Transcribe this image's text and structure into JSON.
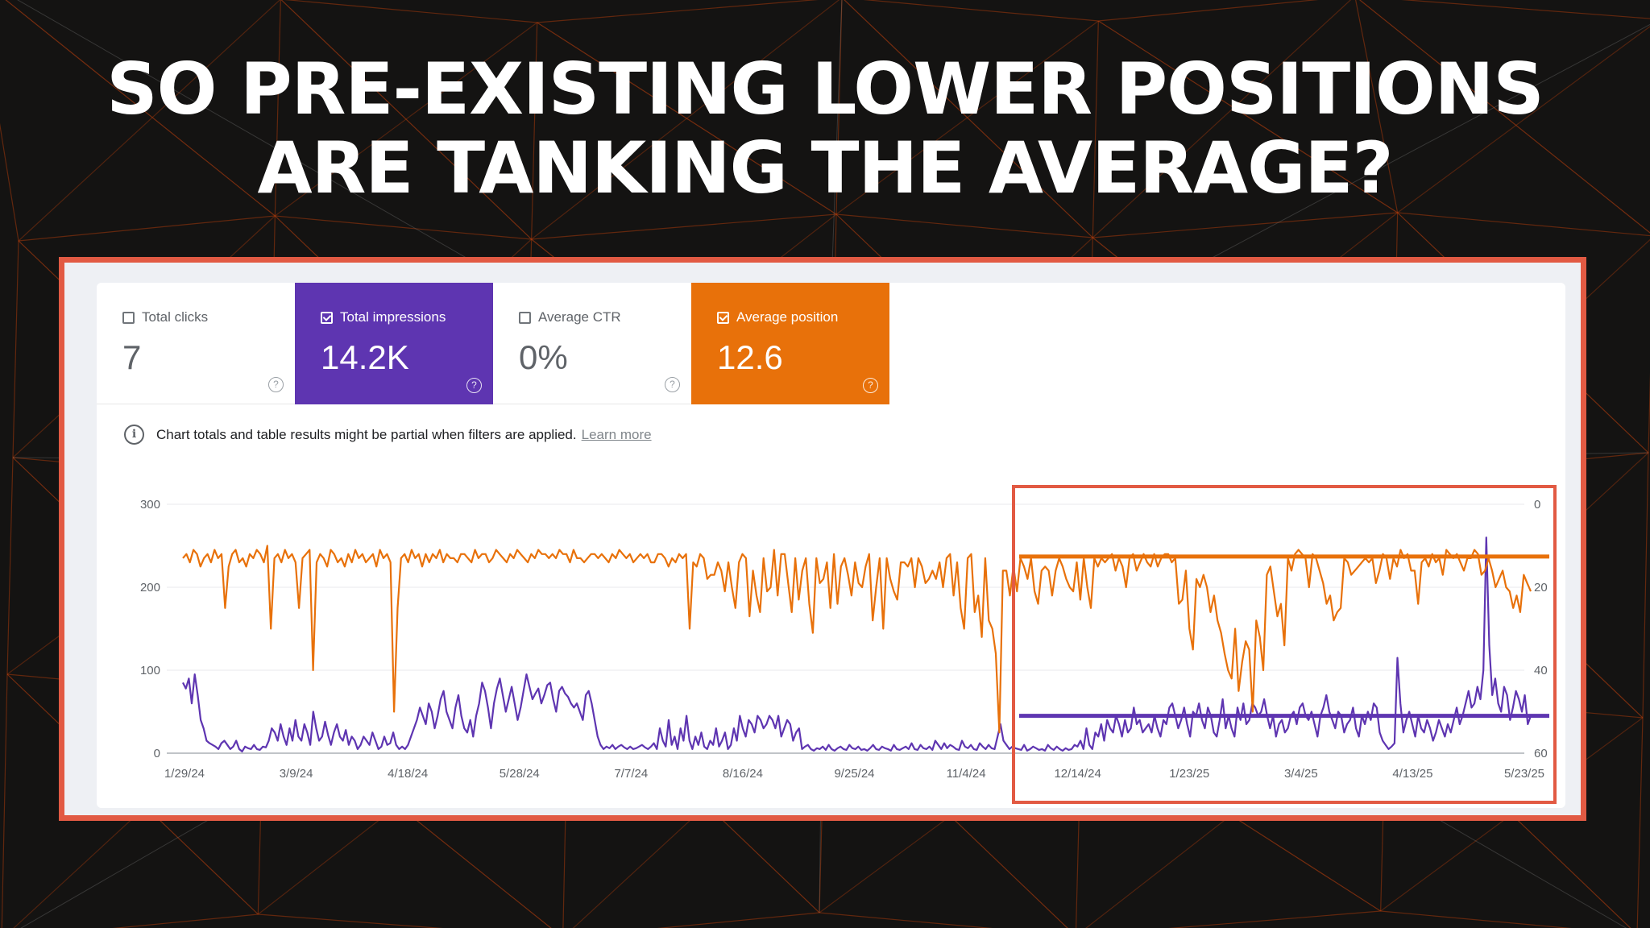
{
  "headline": {
    "line1": "SO PRE-EXISTING LOWER POSITIONS",
    "line2": "ARE TANKING THE AVERAGE?"
  },
  "colors": {
    "background": "#141312",
    "pattern_line": "#c2410c",
    "highlight_frame": "#e25a43",
    "impressions": "#5e35b1",
    "position": "#e8710a"
  },
  "metrics": {
    "clicks": {
      "label": "Total clicks",
      "value": "7",
      "checked": false,
      "icon": "help-icon"
    },
    "impressions": {
      "label": "Total impressions",
      "value": "14.2K",
      "checked": true,
      "icon": "help-icon"
    },
    "ctr": {
      "label": "Average CTR",
      "value": "0%",
      "checked": false,
      "icon": "help-icon"
    },
    "position": {
      "label": "Average position",
      "value": "12.6",
      "checked": true,
      "icon": "help-icon"
    }
  },
  "notice": {
    "icon": "info-icon",
    "text": "Chart totals and table results might be partial when filters are applied.",
    "link": "Learn more"
  },
  "chart_data": {
    "type": "line",
    "x_tick_labels": [
      "1/29/24",
      "3/9/24",
      "4/18/24",
      "5/28/24",
      "7/7/24",
      "8/16/24",
      "9/25/24",
      "11/4/24",
      "12/14/24",
      "1/23/25",
      "3/4/25",
      "4/13/25",
      "5/23/25"
    ],
    "y_left": {
      "ticks": [
        300,
        200,
        100,
        0
      ],
      "ylim": [
        0,
        300
      ]
    },
    "y_right": {
      "ticks": [
        0,
        20,
        40,
        60
      ],
      "ylim": [
        0,
        60
      ],
      "inverted": true
    },
    "grid": true,
    "series": [
      {
        "axis": "left",
        "values": [
          85,
          78,
          90,
          60,
          95,
          70,
          40,
          30,
          15,
          12,
          10,
          8,
          5,
          12,
          15,
          10,
          5,
          8,
          15,
          5,
          2,
          8,
          6,
          5,
          10,
          5,
          4,
          8,
          7,
          15,
          30,
          25,
          15,
          35,
          20,
          10,
          30,
          15,
          40,
          20,
          15,
          35,
          25,
          10,
          50,
          30,
          15,
          20,
          38,
          22,
          10,
          25,
          35,
          20,
          15,
          28,
          10,
          20,
          15,
          5,
          10,
          20,
          15,
          10,
          25,
          15,
          5,
          8,
          20,
          10,
          12,
          25,
          10,
          5,
          8,
          5,
          10,
          20,
          30,
          40,
          55,
          45,
          35,
          60,
          50,
          30,
          45,
          65,
          75,
          50,
          40,
          30,
          55,
          70,
          45,
          30,
          25,
          40,
          20,
          45,
          60,
          85,
          75,
          55,
          30,
          60,
          78,
          90,
          70,
          50,
          65,
          80,
          60,
          40,
          55,
          75,
          95,
          80,
          65,
          72,
          78,
          60,
          70,
          82,
          85,
          65,
          50,
          75,
          80,
          72,
          68,
          60,
          55,
          60,
          50,
          40,
          70,
          75,
          60,
          40,
          20,
          10,
          5,
          8,
          6,
          10,
          5,
          8,
          10,
          7,
          5,
          8,
          5,
          6,
          8,
          10,
          7,
          5,
          8,
          12,
          5,
          30,
          15,
          8,
          40,
          10,
          20,
          5,
          30,
          15,
          45,
          15,
          5,
          20,
          10,
          25,
          8,
          5,
          15,
          10,
          30,
          8,
          15,
          25,
          5,
          10,
          30,
          15,
          45,
          30,
          20,
          40,
          35,
          25,
          45,
          40,
          30,
          35,
          45,
          40,
          30,
          45,
          20,
          30,
          40,
          35,
          15,
          25,
          30,
          5,
          8,
          10,
          5,
          3,
          6,
          5,
          8,
          4,
          10,
          5,
          3,
          6,
          8,
          5,
          4,
          10,
          6,
          5,
          8,
          4,
          5,
          3,
          6,
          10,
          5,
          4,
          8,
          6,
          5,
          3,
          10,
          5,
          4,
          6,
          8,
          5,
          12,
          5,
          4,
          10,
          6,
          5,
          8,
          4,
          15,
          10,
          5,
          12,
          6,
          10,
          8,
          5,
          4,
          15,
          8,
          6,
          10,
          5,
          4,
          12,
          8,
          5,
          10,
          6,
          5,
          20,
          35,
          15,
          10,
          5,
          8,
          6,
          5,
          4,
          10,
          3,
          5,
          8,
          6,
          4,
          5,
          3,
          10,
          6,
          4,
          8,
          5,
          3,
          6,
          4,
          5,
          10,
          8,
          15,
          5,
          30,
          10,
          5,
          25,
          20,
          35,
          15,
          40,
          30,
          25,
          45,
          35,
          20,
          40,
          25,
          30,
          55,
          35,
          40,
          25,
          30,
          35,
          25,
          45,
          30,
          20,
          40,
          35,
          55,
          60,
          45,
          30,
          40,
          55,
          35,
          20,
          50,
          45,
          60,
          40,
          30,
          55,
          45,
          25,
          20,
          40,
          65,
          30,
          45,
          30,
          20,
          55,
          40,
          60,
          35,
          40,
          60,
          55,
          45,
          50,
          65,
          45,
          30,
          45,
          20,
          35,
          40,
          25,
          30,
          45,
          50,
          35,
          55,
          60,
          45,
          40,
          50,
          35,
          20,
          45,
          55,
          70,
          50,
          40,
          30,
          50,
          45,
          25,
          35,
          40,
          55,
          30,
          20,
          45,
          35,
          50,
          40,
          60,
          55,
          25,
          15,
          10,
          5,
          8,
          12,
          115,
          60,
          25,
          40,
          50,
          35,
          20,
          45,
          30,
          25,
          40,
          30,
          15,
          25,
          40,
          30,
          20,
          35,
          25,
          40,
          55,
          35,
          45,
          60,
          75,
          55,
          60,
          80,
          65,
          100,
          260,
          130,
          70,
          90,
          60,
          50,
          80,
          70,
          40,
          55,
          75,
          65,
          50,
          70,
          35,
          45
        ],
        "mean": 45
      },
      {
        "axis": "right",
        "values": [
          13,
          12,
          14,
          11,
          12,
          15,
          13,
          12,
          14,
          11,
          13,
          12,
          25,
          15,
          12,
          11,
          14,
          13,
          15,
          12,
          13,
          11,
          12,
          14,
          10,
          30,
          13,
          12,
          14,
          11,
          13,
          12,
          14,
          25,
          13,
          12,
          11,
          40,
          14,
          12,
          13,
          15,
          11,
          12,
          14,
          13,
          15,
          12,
          14,
          11,
          13,
          12,
          14,
          13,
          12,
          15,
          11,
          13,
          12,
          14,
          50,
          25,
          13,
          12,
          14,
          11,
          13,
          12,
          15,
          12,
          14,
          12,
          13,
          11,
          14,
          12,
          13,
          13,
          14,
          12,
          12,
          13,
          14,
          11,
          13,
          12,
          12,
          14,
          13,
          11,
          12,
          13,
          14,
          12,
          13,
          11,
          12,
          13,
          14,
          12,
          13,
          11,
          12,
          12,
          13,
          12,
          13,
          11,
          12,
          12,
          14,
          11,
          13,
          13,
          14,
          13,
          12,
          12,
          13,
          12,
          13,
          14,
          12,
          13,
          11,
          12,
          13,
          12,
          14,
          13,
          12,
          13,
          12,
          14,
          14,
          12,
          12,
          13,
          15,
          13,
          14,
          12,
          13,
          12,
          30,
          14,
          15,
          12,
          13,
          18,
          17,
          17,
          14,
          16,
          21,
          14,
          20,
          25,
          14,
          12,
          13,
          27,
          16,
          22,
          26,
          13,
          21,
          20,
          11,
          22,
          12,
          12,
          19,
          26,
          13,
          23,
          16,
          13,
          24,
          31,
          13,
          19,
          18,
          14,
          25,
          12,
          24,
          15,
          13,
          17,
          22,
          14,
          19,
          20,
          15,
          12,
          28,
          20,
          13,
          30,
          13,
          18,
          21,
          23,
          14,
          14,
          15,
          13,
          20,
          13,
          15,
          19,
          18,
          16,
          18,
          14,
          20,
          13,
          12,
          22,
          14,
          25,
          30,
          13,
          12,
          26,
          22,
          32,
          13,
          28,
          30,
          36,
          55,
          16,
          16,
          22,
          15,
          21,
          13,
          15,
          18,
          13,
          21,
          24,
          16,
          15,
          16,
          22,
          16,
          13,
          15,
          18,
          20,
          21,
          14,
          23,
          13,
          20,
          25,
          13,
          15,
          13,
          14,
          13,
          12,
          16,
          13,
          15,
          20,
          13,
          12,
          16,
          14,
          12,
          14,
          15,
          12,
          15,
          13,
          12,
          12,
          14,
          13,
          24,
          23,
          16,
          30,
          35,
          18,
          20,
          17,
          20,
          26,
          22,
          28,
          31,
          36,
          40,
          42,
          30,
          45,
          38,
          33,
          35,
          50,
          28,
          32,
          40,
          17,
          15,
          21,
          27,
          24,
          34,
          13,
          16,
          12,
          11,
          12,
          13,
          20,
          12,
          13,
          16,
          19,
          24,
          22,
          28,
          26,
          25,
          13,
          14,
          17,
          16,
          15,
          14,
          13,
          14,
          13,
          19,
          16,
          12,
          13,
          18,
          13,
          15,
          11,
          13,
          12,
          16,
          16,
          24,
          14,
          13,
          15,
          12,
          14,
          13,
          17,
          11,
          12,
          13,
          12,
          14,
          16,
          13,
          13,
          11,
          12,
          17,
          16,
          13,
          16,
          20,
          18,
          16,
          20,
          21,
          25,
          22,
          26,
          17,
          19,
          21
        ],
        "mean": 12.6
      }
    ],
    "highlight_box": {
      "from": "12/14/24",
      "to": "5/23/25"
    }
  }
}
